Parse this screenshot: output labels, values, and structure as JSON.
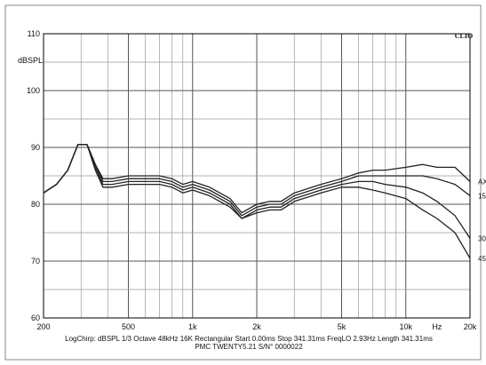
{
  "chart_data": {
    "type": "line",
    "x_scale": "log",
    "xlim": [
      200,
      20000
    ],
    "ylim": [
      60,
      110
    ],
    "ylabel": "dBSPL",
    "y_ticks": [
      60,
      70,
      80,
      90,
      100,
      110
    ],
    "x_ticks": [
      {
        "value": 200,
        "label": "200"
      },
      {
        "value": 500,
        "label": "500"
      },
      {
        "value": 1000,
        "label": "1k"
      },
      {
        "value": 2000,
        "label": "2k"
      },
      {
        "value": 5000,
        "label": "5k"
      },
      {
        "value": 10000,
        "label": "10k"
      },
      {
        "value": 14000,
        "label": "Hz"
      },
      {
        "value": 20000,
        "label": "20k"
      }
    ],
    "grid": true,
    "brand": "CLIO",
    "series": [
      {
        "name": "AXIS",
        "label": "AX",
        "color": "#222222",
        "points": [
          [
            200,
            82
          ],
          [
            230,
            83.5
          ],
          [
            260,
            86
          ],
          [
            290,
            90.5
          ],
          [
            320,
            90.5
          ],
          [
            350,
            87
          ],
          [
            380,
            84.5
          ],
          [
            420,
            84.5
          ],
          [
            500,
            85
          ],
          [
            600,
            85
          ],
          [
            700,
            85
          ],
          [
            800,
            84.5
          ],
          [
            900,
            83.5
          ],
          [
            1000,
            84
          ],
          [
            1200,
            83
          ],
          [
            1500,
            81
          ],
          [
            1700,
            78.5
          ],
          [
            2000,
            80
          ],
          [
            2300,
            80.5
          ],
          [
            2600,
            80.5
          ],
          [
            3000,
            82
          ],
          [
            4000,
            83.5
          ],
          [
            5000,
            84.5
          ],
          [
            6000,
            85.5
          ],
          [
            7000,
            86
          ],
          [
            8000,
            86
          ],
          [
            10000,
            86.5
          ],
          [
            12000,
            87
          ],
          [
            14000,
            86.5
          ],
          [
            17000,
            86.5
          ],
          [
            20000,
            84
          ]
        ]
      },
      {
        "name": "15",
        "label": "15",
        "color": "#222222",
        "points": [
          [
            200,
            82
          ],
          [
            230,
            83.5
          ],
          [
            260,
            86
          ],
          [
            290,
            90.5
          ],
          [
            320,
            90.5
          ],
          [
            350,
            87
          ],
          [
            380,
            84
          ],
          [
            420,
            84
          ],
          [
            500,
            84.5
          ],
          [
            600,
            84.5
          ],
          [
            700,
            84.5
          ],
          [
            800,
            84
          ],
          [
            900,
            83
          ],
          [
            1000,
            83.5
          ],
          [
            1200,
            82.5
          ],
          [
            1500,
            80.5
          ],
          [
            1700,
            78
          ],
          [
            2000,
            79.5
          ],
          [
            2300,
            80
          ],
          [
            2600,
            80
          ],
          [
            3000,
            81.5
          ],
          [
            4000,
            83
          ],
          [
            5000,
            84
          ],
          [
            6000,
            85
          ],
          [
            7000,
            85
          ],
          [
            8000,
            85
          ],
          [
            10000,
            85
          ],
          [
            12000,
            85
          ],
          [
            14000,
            84.5
          ],
          [
            17000,
            83.5
          ],
          [
            20000,
            81.5
          ]
        ]
      },
      {
        "name": "30",
        "label": "30",
        "color": "#222222",
        "points": [
          [
            200,
            82
          ],
          [
            230,
            83.5
          ],
          [
            260,
            86
          ],
          [
            290,
            90.5
          ],
          [
            320,
            90.5
          ],
          [
            350,
            86.5
          ],
          [
            380,
            83.5
          ],
          [
            420,
            83.5
          ],
          [
            500,
            84
          ],
          [
            600,
            84
          ],
          [
            700,
            84
          ],
          [
            800,
            83.5
          ],
          [
            900,
            82.5
          ],
          [
            1000,
            83
          ],
          [
            1200,
            82
          ],
          [
            1500,
            80
          ],
          [
            1700,
            77.5
          ],
          [
            2000,
            79
          ],
          [
            2300,
            79.5
          ],
          [
            2600,
            79.5
          ],
          [
            3000,
            81
          ],
          [
            4000,
            82.5
          ],
          [
            5000,
            83.5
          ],
          [
            6000,
            84
          ],
          [
            7000,
            84
          ],
          [
            8000,
            83.5
          ],
          [
            10000,
            83
          ],
          [
            12000,
            82
          ],
          [
            14000,
            80.5
          ],
          [
            17000,
            78
          ],
          [
            20000,
            74
          ]
        ]
      },
      {
        "name": "45",
        "label": "45",
        "color": "#222222",
        "points": [
          [
            200,
            82
          ],
          [
            230,
            83.5
          ],
          [
            260,
            86
          ],
          [
            290,
            90.5
          ],
          [
            320,
            90.5
          ],
          [
            350,
            86
          ],
          [
            380,
            83
          ],
          [
            420,
            83
          ],
          [
            500,
            83.5
          ],
          [
            600,
            83.5
          ],
          [
            700,
            83.5
          ],
          [
            800,
            83
          ],
          [
            900,
            82
          ],
          [
            1000,
            82.5
          ],
          [
            1200,
            81.5
          ],
          [
            1500,
            79.5
          ],
          [
            1700,
            77.5
          ],
          [
            2000,
            78.5
          ],
          [
            2300,
            79
          ],
          [
            2600,
            79
          ],
          [
            3000,
            80.5
          ],
          [
            4000,
            82
          ],
          [
            5000,
            83
          ],
          [
            6000,
            83
          ],
          [
            7000,
            82.5
          ],
          [
            8000,
            82
          ],
          [
            10000,
            81
          ],
          [
            12000,
            79
          ],
          [
            14000,
            77.5
          ],
          [
            17000,
            75
          ],
          [
            20000,
            70.5
          ]
        ]
      }
    ]
  },
  "caption": {
    "line1": "LogChirp:  dBSPL   1/3 Octave   48kHz   16K   Rectangular   Start 0.00ms    Stop 341.31ms    FreqLO 2.93Hz    Length 341.31ms",
    "line2": "PMC TWENTY5.21 S/N° 0000022"
  }
}
